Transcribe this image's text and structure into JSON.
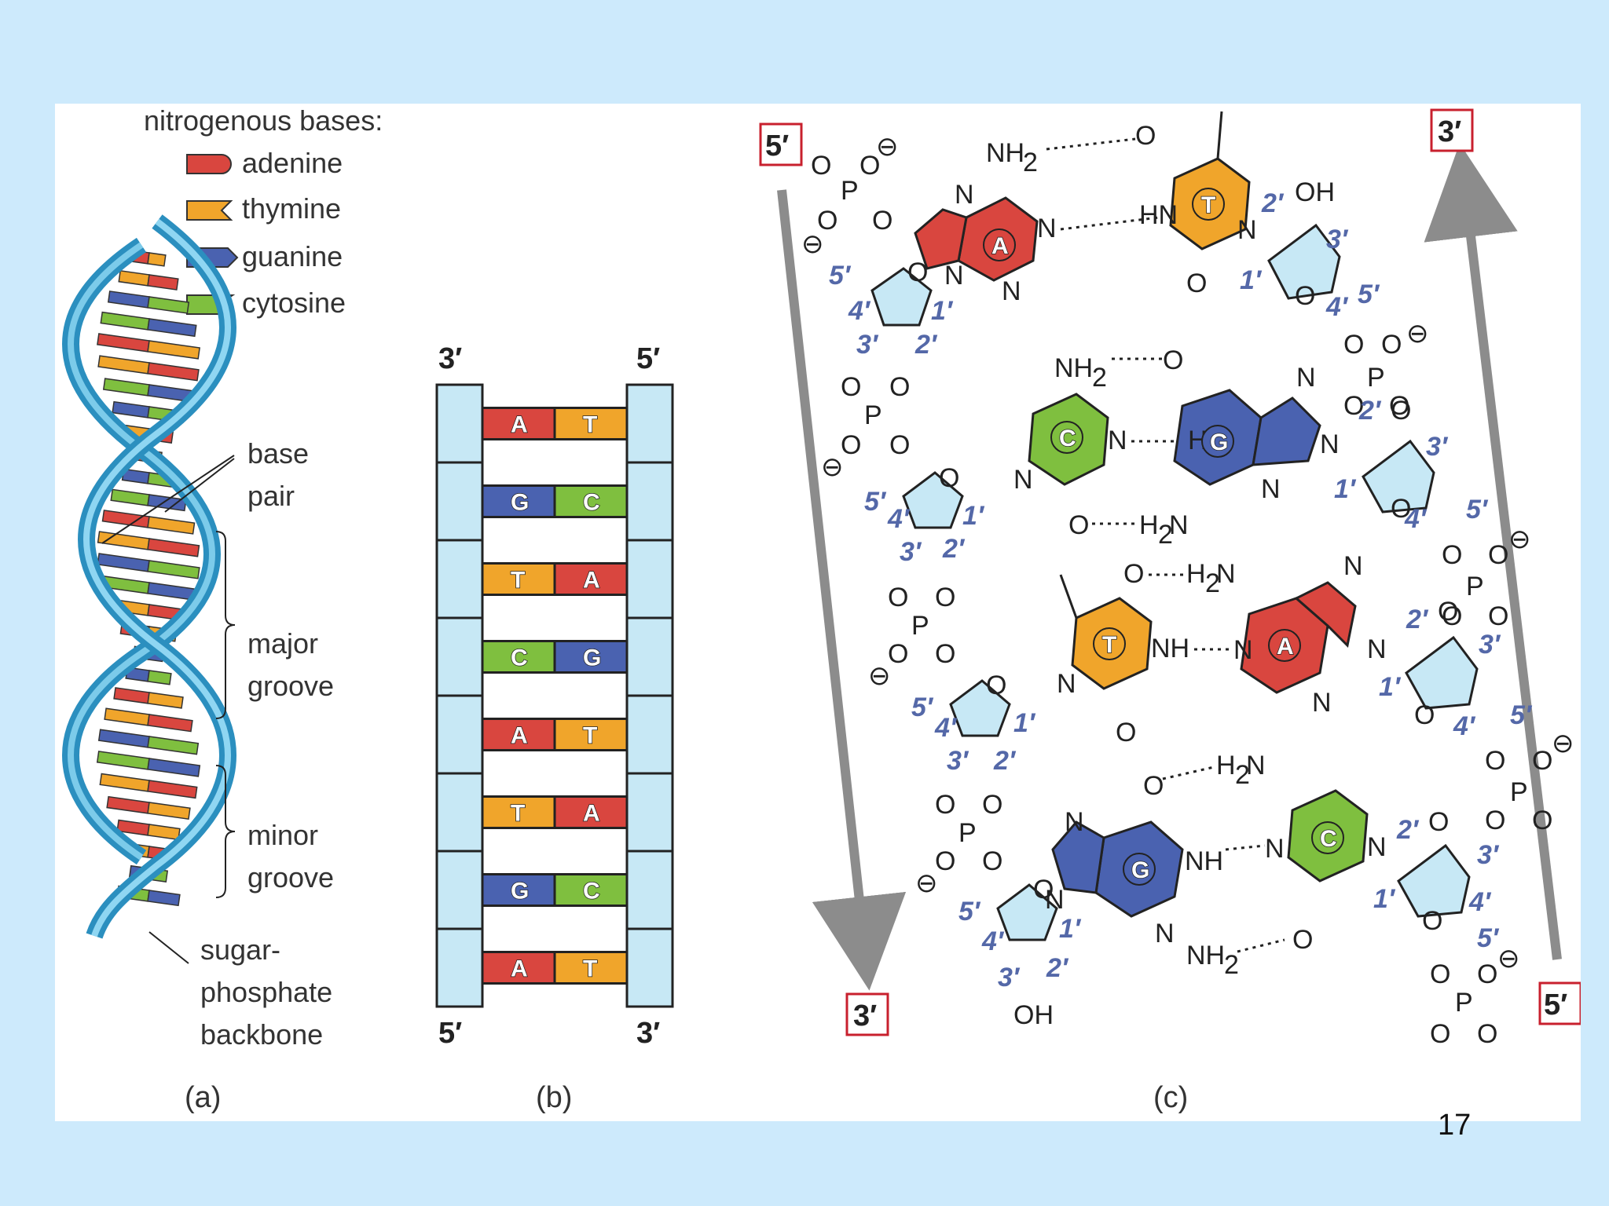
{
  "legend": {
    "title": "nitrogenous bases:",
    "items": [
      {
        "label": "adenine",
        "color": "#d9463f"
      },
      {
        "label": "thymine",
        "color": "#f0a52b"
      },
      {
        "label": "guanine",
        "color": "#4a62b0"
      },
      {
        "label": "cytosine",
        "color": "#7fbf3f"
      }
    ]
  },
  "panel_a": {
    "labels": {
      "base_pair_1": "base",
      "base_pair_2": "pair",
      "major_1": "major",
      "major_2": "groove",
      "minor_1": "minor",
      "minor_2": "groove",
      "backbone_1": "sugar-",
      "backbone_2": "phosphate",
      "backbone_3": "backbone"
    },
    "caption": "(a)"
  },
  "panel_b": {
    "top_left": "3′",
    "top_right": "5′",
    "bottom_left": "5′",
    "bottom_right": "3′",
    "pairs": [
      {
        "left": "A",
        "right": "T"
      },
      {
        "left": "G",
        "right": "C"
      },
      {
        "left": "T",
        "right": "A"
      },
      {
        "left": "C",
        "right": "G"
      },
      {
        "left": "A",
        "right": "T"
      },
      {
        "left": "T",
        "right": "A"
      },
      {
        "left": "G",
        "right": "C"
      },
      {
        "left": "A",
        "right": "T"
      }
    ],
    "caption": "(b)"
  },
  "panel_c": {
    "end_top_left": "5′",
    "end_top_right": "3′",
    "end_bottom_left": "3′",
    "end_bottom_right": "5′",
    "caption": "(c)",
    "rows": [
      {
        "left_base": "A",
        "right_base": "T"
      },
      {
        "left_base": "C",
        "right_base": "G"
      },
      {
        "left_base": "T",
        "right_base": "A"
      },
      {
        "left_base": "G",
        "right_base": "C"
      }
    ]
  },
  "slide_number": "17"
}
